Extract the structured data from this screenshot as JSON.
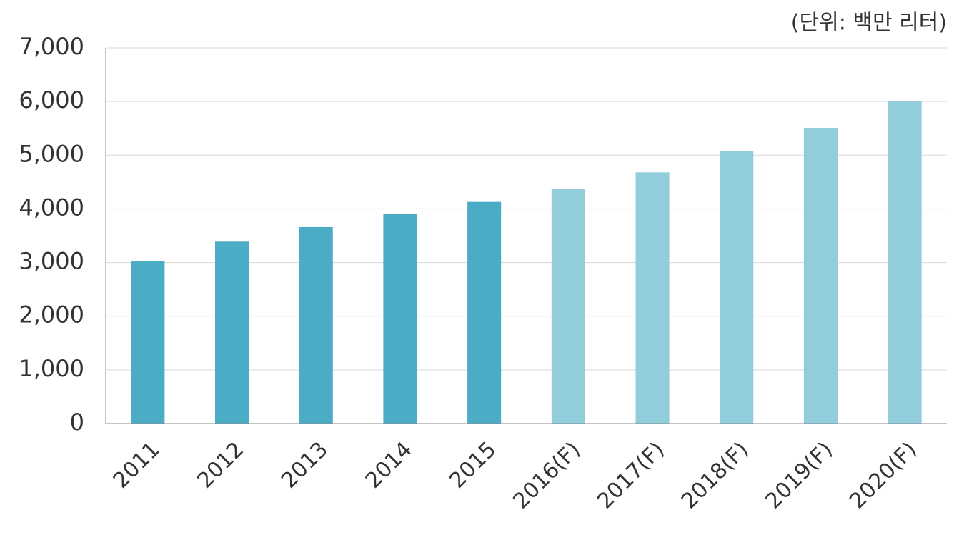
{
  "chart_data": {
    "type": "bar",
    "unit": "(단위: 백만 리터)",
    "categories": [
      "2011",
      "2012",
      "2013",
      "2014",
      "2015",
      "2016(F)",
      "2017(F)",
      "2018(F)",
      "2019(F)",
      "2020(F)"
    ],
    "values": [
      3030,
      3390,
      3660,
      3910,
      4130,
      4370,
      4680,
      5070,
      5510,
      6010
    ],
    "colors": [
      "#4aacc5",
      "#4aacc5",
      "#4aacc5",
      "#4aacc5",
      "#4aacc5",
      "#92cddc",
      "#92cddc",
      "#92cddc",
      "#92cddc",
      "#92cddc"
    ],
    "ylim": [
      0,
      7000
    ],
    "yticks": [
      0,
      {
        "value": 1000,
        "label": "1,000"
      },
      {
        "value": 2000,
        "label": "2,000"
      },
      {
        "value": 3000,
        "label": "3,000"
      },
      {
        "value": 4000,
        "label": "4,000"
      },
      {
        "value": 5000,
        "label": "5,000"
      },
      {
        "value": 6000,
        "label": "6,000"
      },
      {
        "value": 7000,
        "label": "7,000"
      }
    ],
    "grid": true
  }
}
